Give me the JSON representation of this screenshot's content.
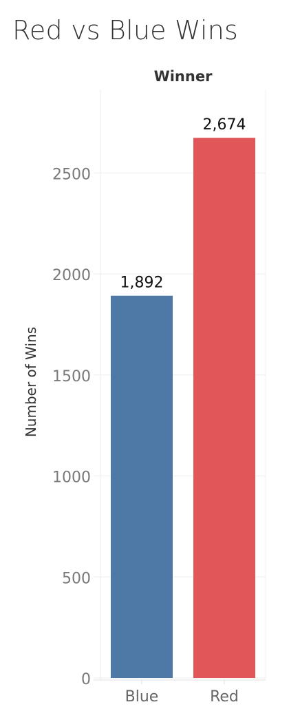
{
  "title": "Red vs Blue Wins",
  "chart_data": {
    "type": "bar",
    "title": "Red vs Blue Wins",
    "column_header": "Winner",
    "categories": [
      "Blue",
      "Red"
    ],
    "values": [
      1892,
      2674
    ],
    "value_labels": [
      "1,892",
      "2,674"
    ],
    "colors": [
      "#4e79a7",
      "#e15759"
    ],
    "xlabel": "",
    "ylabel": "Number of Wins",
    "ylim": [
      0,
      2750
    ],
    "yticks": [
      0,
      500,
      1000,
      1500,
      2000,
      2500
    ],
    "grid": true,
    "legend": "none"
  }
}
